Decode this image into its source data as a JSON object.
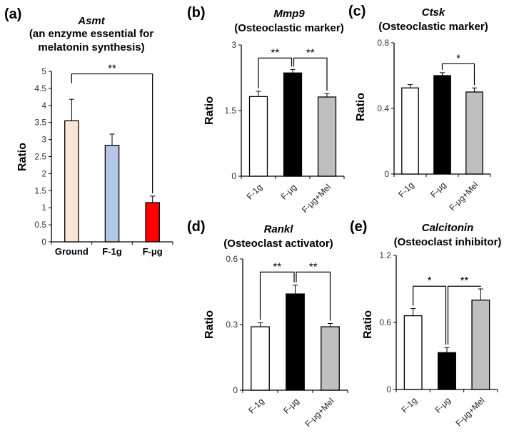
{
  "chart_data": [
    {
      "type": "bar",
      "panel": "(a)",
      "gene": "Asmt",
      "subtitle": [
        "(an enzyme essential for",
        "melatonin synthesis)"
      ],
      "ylabel": "Ratio",
      "ylim": [
        0,
        5
      ],
      "yticks": [
        "0",
        "0.5",
        "1",
        "1.5",
        "2",
        "2.5",
        "3",
        "3.5",
        "4",
        "4.5",
        "5"
      ],
      "categories": [
        "Ground",
        "F-1g",
        "F-μg"
      ],
      "values": [
        3.55,
        2.83,
        1.15
      ],
      "errors": [
        0.63,
        0.33,
        0.19
      ],
      "colors": [
        "#fbe5d6",
        "#b4c7e7",
        "#ff0000"
      ],
      "significance": [
        {
          "from": 0,
          "to": 2,
          "label": "**"
        }
      ]
    },
    {
      "type": "bar",
      "panel": "(b)",
      "gene": "Mmp9",
      "subtitle": [
        "(Osteoclastic marker)"
      ],
      "ylabel": "Ratio",
      "ylim": [
        0,
        3
      ],
      "yticks": [
        "0",
        "1.5",
        "3"
      ],
      "categories": [
        "F-1g",
        "F-μg",
        "F-μg+Mel"
      ],
      "values": [
        1.82,
        2.36,
        1.81
      ],
      "errors": [
        0.12,
        0.08,
        0.08
      ],
      "colors": [
        "#ffffff",
        "#000000",
        "#bfbfbf"
      ],
      "significance": [
        {
          "from": 0,
          "to": 1,
          "label": "**"
        },
        {
          "from": 1,
          "to": 2,
          "label": "**"
        }
      ]
    },
    {
      "type": "bar",
      "panel": "(c)",
      "gene": "Ctsk",
      "subtitle": [
        "(Osteoclastic marker)"
      ],
      "ylabel": "Ratio",
      "ylim": [
        0,
        0.8
      ],
      "yticks": [
        "0",
        "0.4",
        "0.8"
      ],
      "categories": [
        "F-1g",
        "F-μg",
        "F-μg+Mel"
      ],
      "values": [
        0.525,
        0.6,
        0.5
      ],
      "errors": [
        0.02,
        0.018,
        0.025
      ],
      "colors": [
        "#ffffff",
        "#000000",
        "#bfbfbf"
      ],
      "significance": [
        {
          "from": 1,
          "to": 2,
          "label": "*"
        }
      ]
    },
    {
      "type": "bar",
      "panel": "(d)",
      "gene": "Rankl",
      "subtitle": [
        "(Osteoclast activator)"
      ],
      "ylabel": "Ratio",
      "ylim": [
        0,
        0.6
      ],
      "yticks": [
        "0",
        "0.3",
        "0.6"
      ],
      "categories": [
        "F-1g",
        "F-μg",
        "F-μg+Mel"
      ],
      "values": [
        0.29,
        0.44,
        0.29
      ],
      "errors": [
        0.018,
        0.04,
        0.015
      ],
      "colors": [
        "#ffffff",
        "#000000",
        "#bfbfbf"
      ],
      "significance": [
        {
          "from": 0,
          "to": 1,
          "label": "**"
        },
        {
          "from": 1,
          "to": 2,
          "label": "**"
        }
      ]
    },
    {
      "type": "bar",
      "panel": "(e)",
      "gene": "Calcitonin",
      "subtitle": [
        "(Osteoclast inhibitor)"
      ],
      "ylabel": "Ratio",
      "ylim": [
        0,
        1.2
      ],
      "yticks": [
        "0",
        "0.6",
        "1.2"
      ],
      "categories": [
        "F-1g",
        "F-μg",
        "F-μg+Mel"
      ],
      "values": [
        0.66,
        0.33,
        0.8
      ],
      "errors": [
        0.065,
        0.045,
        0.1
      ],
      "colors": [
        "#ffffff",
        "#000000",
        "#bfbfbf"
      ],
      "significance": [
        {
          "from": 0,
          "to": 1,
          "label": "*"
        },
        {
          "from": 1,
          "to": 2,
          "label": "**"
        }
      ]
    }
  ]
}
